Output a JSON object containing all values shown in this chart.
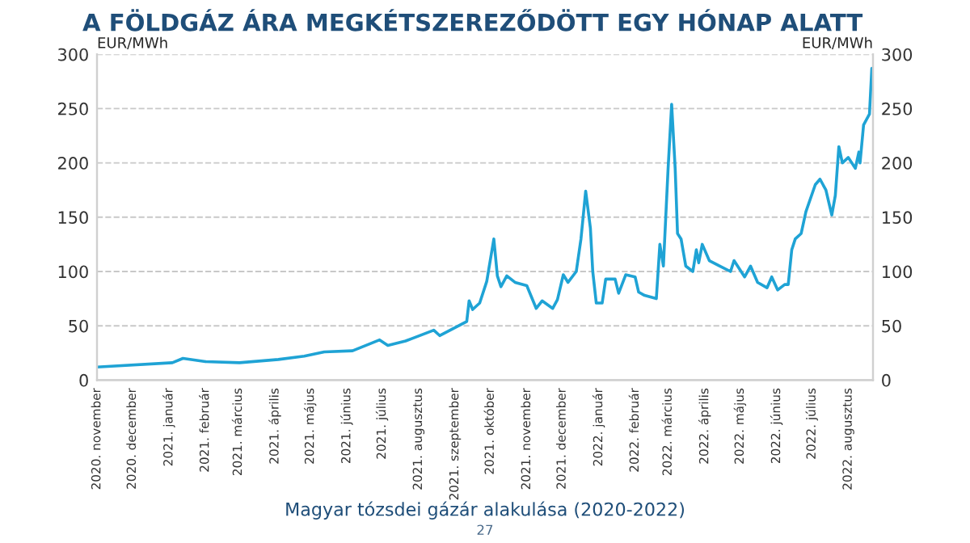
{
  "chart_data": {
    "type": "line",
    "title": "A FÖLDGÁZ ÁRA MEGKÉTSZEREZŐDÖTT EGY HÓNAP ALATT",
    "ylabel": "EUR/MWh",
    "y2label": "EUR/MWh",
    "annotations": [
      "Magyar tózsdei gázár alakulása (2020-2022)",
      "27"
    ],
    "x": [
      "2020-11-01",
      "2021-01-04",
      "2021-01-13",
      "2021-02-01",
      "2021-03-02",
      "2021-04-04",
      "2021-04-26",
      "2021-05-13",
      "2021-06-06",
      "2021-06-29",
      "2021-07-06",
      "2021-07-21",
      "2021-08-14",
      "2021-08-19",
      "2021-09-11",
      "2021-09-13",
      "2021-09-16",
      "2021-09-22",
      "2021-09-28",
      "2021-10-04",
      "2021-10-07",
      "2021-10-10",
      "2021-10-15",
      "2021-10-22",
      "2021-11-01",
      "2021-11-09",
      "2021-11-14",
      "2021-11-23",
      "2021-11-27",
      "2021-12-02",
      "2021-12-06",
      "2021-12-13",
      "2021-12-17",
      "2021-12-21",
      "2021-12-25",
      "2021-12-27",
      "2021-12-30",
      "2022-01-04",
      "2022-01-07",
      "2022-01-15",
      "2022-01-18",
      "2022-01-24",
      "2022-02-01",
      "2022-02-04",
      "2022-02-09",
      "2022-02-19",
      "2022-02-22",
      "2022-02-25",
      "2022-03-01",
      "2022-03-04",
      "2022-03-07",
      "2022-03-09",
      "2022-03-12",
      "2022-03-16",
      "2022-03-22",
      "2022-03-25",
      "2022-03-27",
      "2022-03-30",
      "2022-04-05",
      "2022-04-14",
      "2022-04-23",
      "2022-04-26",
      "2022-05-05",
      "2022-05-10",
      "2022-05-16",
      "2022-05-24",
      "2022-05-28",
      "2022-06-02",
      "2022-06-08",
      "2022-06-11",
      "2022-06-14",
      "2022-06-17",
      "2022-06-22",
      "2022-06-26",
      "2022-07-04",
      "2022-07-08",
      "2022-07-13",
      "2022-07-18",
      "2022-07-21",
      "2022-07-24",
      "2022-07-27",
      "2022-08-01",
      "2022-08-07",
      "2022-08-10",
      "2022-08-11",
      "2022-08-14",
      "2022-08-19",
      "2022-08-21"
    ],
    "series": [
      {
        "color": "#1fa3d5",
        "values": [
          12,
          16,
          20,
          17,
          16,
          19,
          22,
          26,
          27,
          37,
          32,
          36,
          46,
          41,
          54,
          73,
          65,
          71,
          91,
          130,
          96,
          86,
          96,
          90,
          87,
          66,
          73,
          66,
          74,
          97,
          90,
          100,
          130,
          174,
          140,
          100,
          71,
          71,
          93,
          93,
          80,
          97,
          95,
          81,
          78,
          75,
          125,
          105,
          195,
          254,
          195,
          135,
          130,
          105,
          100,
          120,
          108,
          125,
          110,
          105,
          100,
          110,
          95,
          105,
          90,
          85,
          95,
          83,
          88,
          88,
          120,
          130,
          135,
          155,
          180,
          185,
          175,
          152,
          170,
          215,
          200,
          205,
          195,
          210,
          200,
          235,
          245,
          287
        ]
      }
    ],
    "xlim": [
      "2020-11-01",
      "2022-08-22"
    ],
    "xticks": [
      {
        "value": "2020-11-01",
        "label": "2020. november"
      },
      {
        "value": "2020-12-01",
        "label": "2020. december"
      },
      {
        "value": "2021-01-01",
        "label": "2021. január"
      },
      {
        "value": "2021-02-01",
        "label": "2021. február"
      },
      {
        "value": "2021-03-01",
        "label": "2021. március"
      },
      {
        "value": "2021-04-01",
        "label": "2021. április"
      },
      {
        "value": "2021-05-01",
        "label": "2021. május"
      },
      {
        "value": "2021-06-01",
        "label": "2021. június"
      },
      {
        "value": "2021-07-01",
        "label": "2021. július"
      },
      {
        "value": "2021-08-01",
        "label": "2021. augusztus"
      },
      {
        "value": "2021-09-01",
        "label": "2021. szeptember"
      },
      {
        "value": "2021-10-01",
        "label": "2021. október"
      },
      {
        "value": "2021-11-01",
        "label": "2021. november"
      },
      {
        "value": "2021-12-01",
        "label": "2021. december"
      },
      {
        "value": "2022-01-01",
        "label": "2022. január"
      },
      {
        "value": "2022-02-01",
        "label": "2022. február"
      },
      {
        "value": "2022-03-01",
        "label": "2022. március"
      },
      {
        "value": "2022-04-01",
        "label": "2022. április"
      },
      {
        "value": "2022-05-01",
        "label": "2022. május"
      },
      {
        "value": "2022-06-01",
        "label": "2022. június"
      },
      {
        "value": "2022-07-01",
        "label": "2022. július"
      },
      {
        "value": "2022-08-01",
        "label": "2022. augusztus"
      }
    ],
    "ylim": [
      0,
      300
    ],
    "yticks": [
      0,
      50,
      100,
      150,
      200,
      250,
      300
    ],
    "y2lim": [
      0,
      300
    ],
    "y2ticks": [
      0,
      50,
      100,
      150,
      200,
      250,
      300
    ],
    "grid": "y",
    "marker": "none",
    "line_style": "solid"
  }
}
